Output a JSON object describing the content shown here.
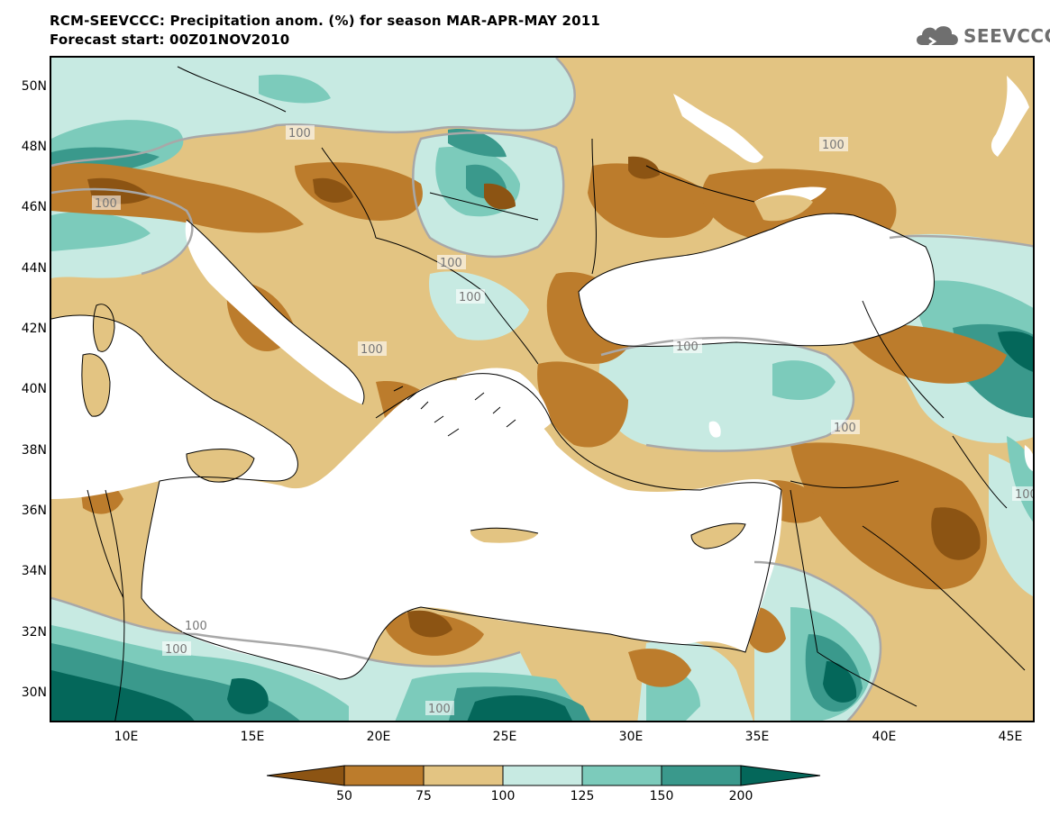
{
  "header": {
    "title_line1": "RCM-SEEVCCC: Precipitation anom. (%) for season MAR-APR-MAY 2011",
    "title_line2": "Forecast start: 00Z01NOV2010",
    "logo_text": "SEEVCCC",
    "logo_icon": "cloud-icon"
  },
  "map": {
    "lat_labels": [
      "50N",
      "48N",
      "46N",
      "44N",
      "42N",
      "40N",
      "38N",
      "36N",
      "34N",
      "32N",
      "30N"
    ],
    "lon_labels": [
      "10E",
      "15E",
      "20E",
      "25E",
      "30E",
      "35E",
      "40E",
      "45E"
    ],
    "contour_labels": [
      "100",
      "100",
      "100",
      "100",
      "100",
      "100",
      "100",
      "100",
      "100",
      "100",
      "100",
      "100"
    ],
    "colors": {
      "lt50": "#8c5413",
      "c50_75": "#bc7c2c",
      "c75_100": "#e3c482",
      "c100_125": "#c7eae2",
      "c125_150": "#7ccbbb",
      "c150_200": "#3a998c",
      "gt200": "#04675a",
      "sea": "#ffffff",
      "contour100": "#a8a8a8"
    }
  },
  "legend": {
    "labels": [
      "50",
      "75",
      "100",
      "125",
      "150",
      "200"
    ]
  }
}
